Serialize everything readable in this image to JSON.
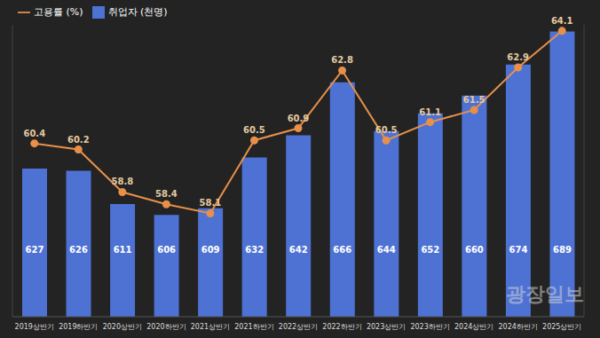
{
  "chart_data": {
    "type": "bar",
    "categories": [
      "2019상반기",
      "2019하반기",
      "2020상반기",
      "2020하반기",
      "2021상반기",
      "2021하반기",
      "2022상반기",
      "2022하반기",
      "2023상반기",
      "2023하반기",
      "2024상반기",
      "2024하반기",
      "2025상반기"
    ],
    "series": [
      {
        "name": "취업자 (천명)",
        "type": "bar",
        "color": "#4e72d4",
        "values": [
          627,
          626,
          611,
          606,
          609,
          632,
          642,
          666,
          644,
          652,
          660,
          674,
          689
        ]
      },
      {
        "name": "고용률 (%)",
        "type": "line",
        "axis": "y2",
        "color": "#e8904a",
        "marker": "circle",
        "values": [
          60.4,
          60.2,
          58.8,
          58.4,
          58.1,
          60.5,
          60.9,
          62.8,
          60.5,
          61.1,
          61.5,
          62.9,
          64.1
        ]
      }
    ],
    "ylim": [
      560,
      692
    ],
    "y2lim": [
      54.7,
      64.3
    ],
    "data_labels": true,
    "tick_labels": "x",
    "legend": "top-left",
    "grid": false,
    "annotations": [
      "광장일보"
    ]
  }
}
